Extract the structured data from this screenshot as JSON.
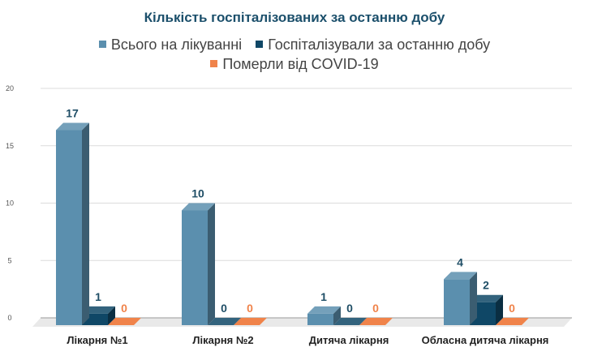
{
  "chart_data": {
    "type": "bar",
    "title": "Кількість госпіталізованих за останню добу",
    "xlabel": "",
    "ylabel": "",
    "ylim": [
      0,
      20
    ],
    "yticks": [
      "0",
      "5",
      "10",
      "15",
      "20"
    ],
    "grid": true,
    "legend_position": "top",
    "categories": [
      "Лікарня №1",
      "Лікарня №2",
      "Дитяча лікарня",
      "Обласна дитяча лікарня"
    ],
    "series": [
      {
        "name": "Всього на лікуванні",
        "values": [
          17,
          10,
          1,
          4
        ],
        "color": "#5b8fae",
        "label_color": "#1f4e66"
      },
      {
        "name": "Госпіталізували за останню добу",
        "values": [
          1,
          0,
          0,
          2
        ],
        "color": "#0f4766",
        "label_color": "#1f4e66"
      },
      {
        "name": "Померли від COVID-19",
        "values": [
          0,
          0,
          0,
          0
        ],
        "color": "#f0834a",
        "label_color": "#f0834a"
      }
    ]
  }
}
